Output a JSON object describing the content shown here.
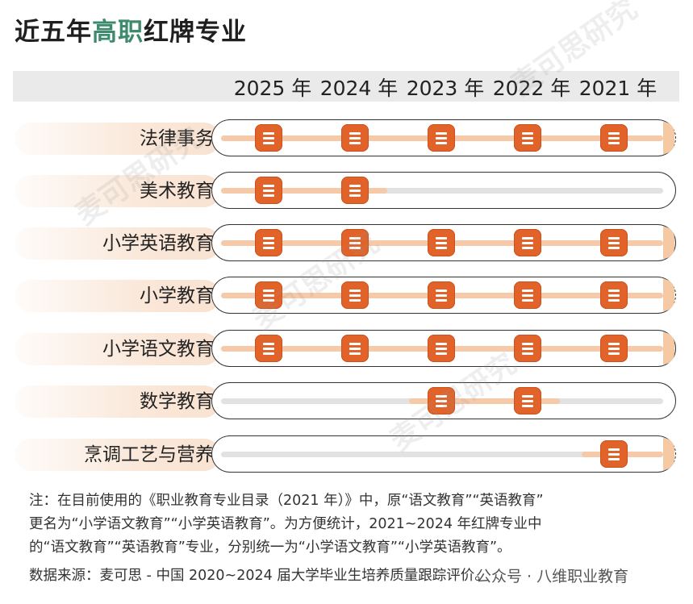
{
  "title": {
    "before": "近五年",
    "highlight": "高职",
    "after": "红牌专业"
  },
  "years": [
    "2025 年",
    "2024 年",
    "2023 年",
    "2022 年",
    "2021 年"
  ],
  "rows": [
    {
      "label": "法律事务",
      "marked": [
        true,
        true,
        true,
        true,
        true
      ]
    },
    {
      "label": "美术教育",
      "marked": [
        true,
        true,
        false,
        false,
        false
      ]
    },
    {
      "label": "小学英语教育",
      "marked": [
        true,
        true,
        true,
        true,
        true
      ]
    },
    {
      "label": "小学教育",
      "marked": [
        true,
        true,
        true,
        true,
        true
      ]
    },
    {
      "label": "小学语文教育",
      "marked": [
        true,
        true,
        true,
        true,
        true
      ]
    },
    {
      "label": "数学教育",
      "marked": [
        false,
        false,
        true,
        true,
        false
      ]
    },
    {
      "label": "烹调工艺与营养",
      "marked": [
        false,
        false,
        false,
        false,
        true
      ]
    }
  ],
  "note": [
    "注：在目前使用的《职业教育专业目录（2021 年）》中，原“语文教育”“英语教育”",
    "更名为“小学语文教育”“小学英语教育”。为方便统计，2021~2024 年红牌专业中",
    "的“语文教育”“英语教育”专业，分别统一为“小学语文教育”“小学英语教育”。"
  ],
  "source": "数据来源：麦可思 - 中国 2020~2024 届大学毕业生培养质量跟踪评价。",
  "tag": "公众号 · 八维职业教育",
  "watermark": "麦可思研究",
  "colors": {
    "accent": "#e2632a",
    "highlight": "#3d8b6d",
    "label_bg": "#fae8da"
  }
}
